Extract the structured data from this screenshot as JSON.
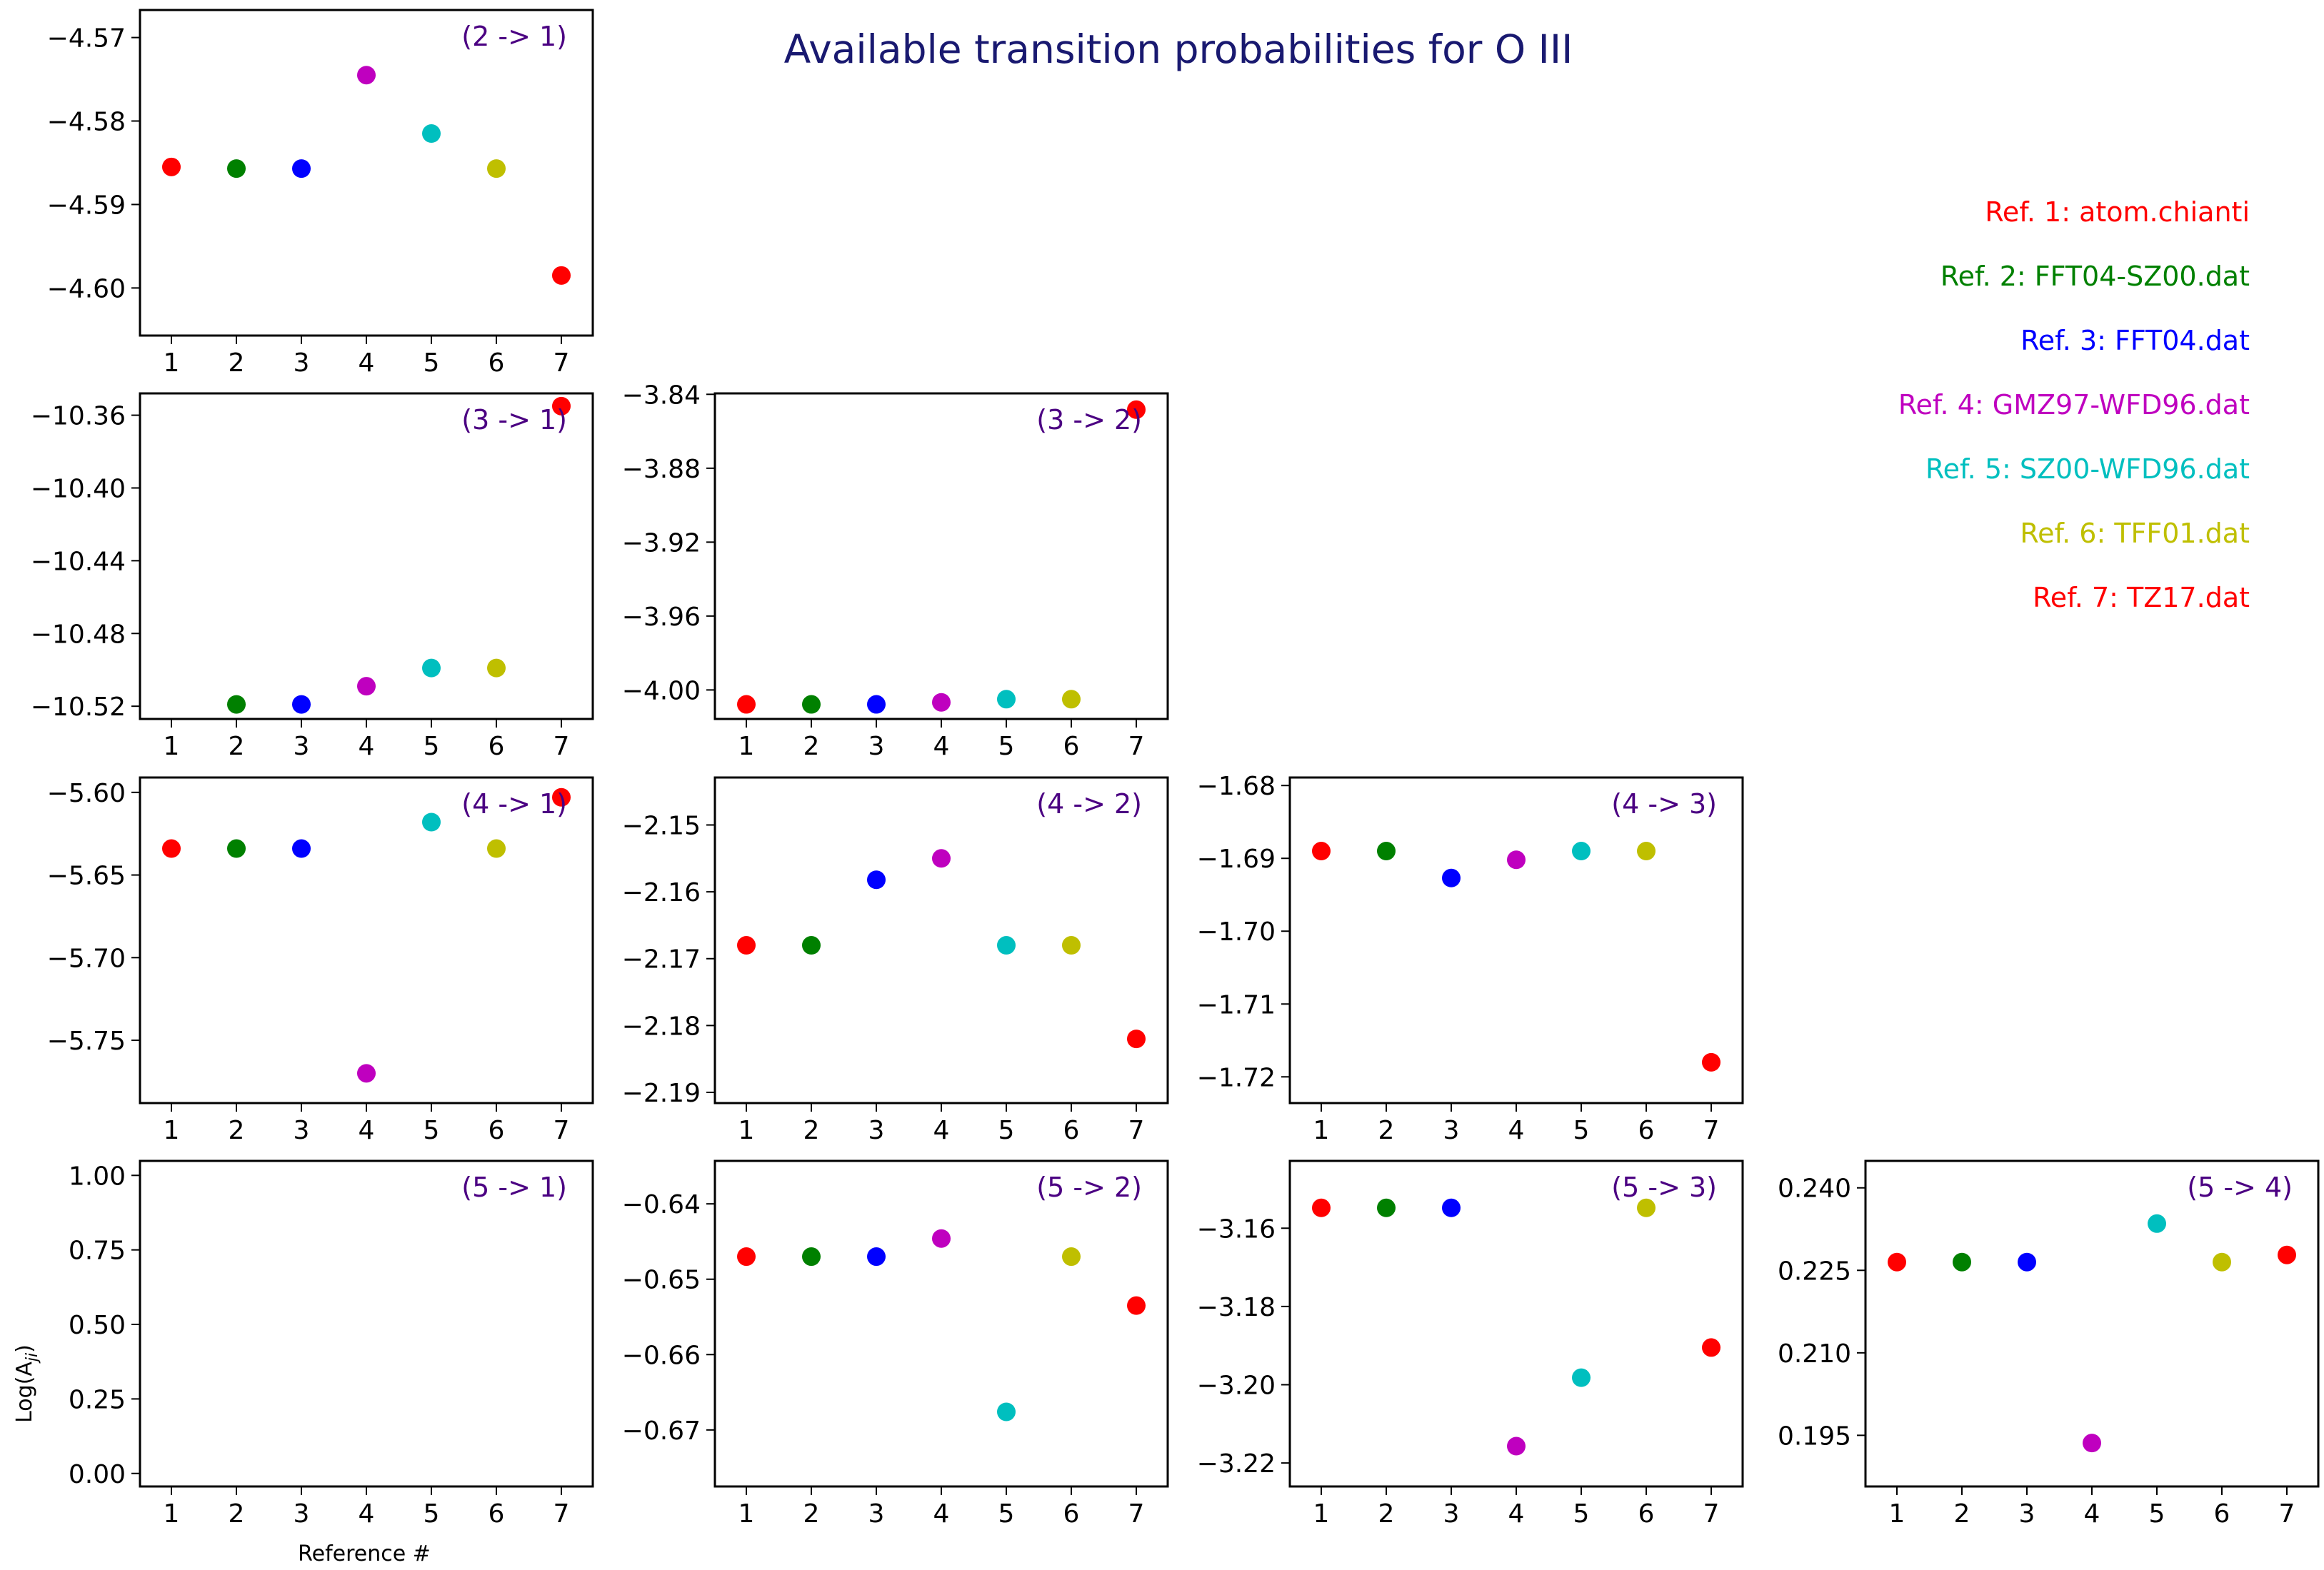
{
  "title": "Available transition probabilities for O III",
  "xlabel": "Reference #",
  "ylabel": "Log(A",
  "ylabel_sub": "ji",
  "ylabel_close": ")",
  "colors": {
    "ref1": "#ff0000",
    "ref2": "#008000",
    "ref3": "#0000ff",
    "ref4": "#bf00bf",
    "ref5": "#00bfbf",
    "ref6": "#bfbf00",
    "ref7": "#ff0000",
    "title": "#191970",
    "panel_label": "#4b0082"
  },
  "legend": [
    {
      "label": "Ref. 1: atom.chianti",
      "color": "#ff0000"
    },
    {
      "label": "Ref. 2: FFT04-SZ00.dat",
      "color": "#008000"
    },
    {
      "label": "Ref. 3: FFT04.dat",
      "color": "#0000ff"
    },
    {
      "label": "Ref. 4: GMZ97-WFD96.dat",
      "color": "#bf00bf"
    },
    {
      "label": "Ref. 5: SZ00-WFD96.dat",
      "color": "#00bfbf"
    },
    {
      "label": "Ref. 6: TFF01.dat",
      "color": "#bfbf00"
    },
    {
      "label": "Ref. 7: TZ17.dat",
      "color": "#ff0000"
    }
  ],
  "chart_data": [
    {
      "type": "scatter",
      "label": "(2 -> 1)",
      "x": [
        1,
        2,
        3,
        4,
        5,
        6,
        7
      ],
      "values": [
        -4.5855,
        -4.5857,
        -4.5857,
        -4.5745,
        -4.5815,
        -4.5857,
        -4.5985
      ],
      "ylim": [
        -4.6057,
        -4.5667
      ],
      "yticks": [
        "-4.57",
        "-4.58",
        "-4.59",
        "-4.60"
      ],
      "ytick_values": [
        -4.57,
        -4.58,
        -4.59,
        -4.6
      ],
      "xticks": [
        "1",
        "2",
        "3",
        "4",
        "5",
        "6",
        "7"
      ]
    },
    {
      "type": "scatter",
      "label": "(3 -> 1)",
      "x": [
        1,
        2,
        3,
        4,
        5,
        6,
        7
      ],
      "values": [
        null,
        -10.519,
        -10.519,
        -10.509,
        -10.499,
        -10.499,
        -10.355
      ],
      "ylim": [
        -10.527,
        -10.348
      ],
      "yticks": [
        "-10.36",
        "-10.40",
        "-10.44",
        "-10.48",
        "-10.52"
      ],
      "ytick_values": [
        -10.36,
        -10.4,
        -10.44,
        -10.48,
        -10.52
      ],
      "xticks": [
        "1",
        "2",
        "3",
        "4",
        "5",
        "6",
        "7"
      ]
    },
    {
      "type": "scatter",
      "label": "(3 -> 2)",
      "x": [
        1,
        2,
        3,
        4,
        5,
        6,
        7
      ],
      "values": [
        -4.0078,
        -4.0078,
        -4.0078,
        -4.0067,
        -4.005,
        -4.005,
        -3.8483
      ],
      "ylim": [
        -4.0157,
        -3.8395
      ],
      "yticks": [
        "-3.84",
        "-3.88",
        "-3.92",
        "-3.96",
        "-4.00"
      ],
      "ytick_values": [
        -3.84,
        -3.88,
        -3.92,
        -3.96,
        -4.0
      ],
      "xticks": [
        "1",
        "2",
        "3",
        "4",
        "5",
        "6",
        "7"
      ]
    },
    {
      "type": "scatter",
      "label": "(4 -> 1)",
      "x": [
        1,
        2,
        3,
        4,
        5,
        6,
        7
      ],
      "values": [
        -5.634,
        -5.634,
        -5.634,
        -5.77,
        -5.618,
        -5.634,
        -5.603
      ],
      "ylim": [
        -5.788,
        -5.591
      ],
      "yticks": [
        "-5.60",
        "-5.65",
        "-5.70",
        "-5.75"
      ],
      "ytick_values": [
        -5.6,
        -5.65,
        -5.7,
        -5.75
      ],
      "xticks": [
        "1",
        "2",
        "3",
        "4",
        "5",
        "6",
        "7"
      ]
    },
    {
      "type": "scatter",
      "label": "(4 -> 2)",
      "x": [
        1,
        2,
        3,
        4,
        5,
        6,
        7
      ],
      "values": [
        -2.168,
        -2.168,
        -2.1582,
        -2.155,
        -2.168,
        -2.168,
        -2.182
      ],
      "ylim": [
        -2.1916,
        -2.1429
      ],
      "yticks": [
        "-2.15",
        "-2.16",
        "-2.17",
        "-2.18",
        "-2.19"
      ],
      "ytick_values": [
        -2.15,
        -2.16,
        -2.17,
        -2.18,
        -2.19
      ],
      "xticks": [
        "1",
        "2",
        "3",
        "4",
        "5",
        "6",
        "7"
      ]
    },
    {
      "type": "scatter",
      "label": "(4 -> 3)",
      "x": [
        1,
        2,
        3,
        4,
        5,
        6,
        7
      ],
      "values": [
        -1.689,
        -1.689,
        -1.6927,
        -1.6902,
        -1.689,
        -1.689,
        -1.718
      ],
      "ylim": [
        -1.7236,
        -1.6789
      ],
      "yticks": [
        "-1.68",
        "-1.69",
        "-1.70",
        "-1.71",
        "-1.72"
      ],
      "ytick_values": [
        -1.68,
        -1.69,
        -1.7,
        -1.71,
        -1.72
      ],
      "xticks": [
        "1",
        "2",
        "3",
        "4",
        "5",
        "6",
        "7"
      ]
    },
    {
      "type": "scatter",
      "label": "(5 -> 1)",
      "x": [],
      "values": [],
      "ylim": [
        -0.0437,
        1.0486
      ],
      "yticks": [
        "1.00",
        "0.75",
        "0.50",
        "0.25",
        "0.00"
      ],
      "ytick_values": [
        1.0,
        0.75,
        0.5,
        0.25,
        0.0
      ],
      "xticks": [
        "1",
        "2",
        "3",
        "4",
        "5",
        "6",
        "7"
      ]
    },
    {
      "type": "scatter",
      "label": "(5 -> 2)",
      "x": [
        1,
        2,
        3,
        4,
        5,
        6,
        7
      ],
      "values": [
        -0.647,
        -0.647,
        -0.647,
        -0.6446,
        -0.6676,
        -0.647,
        -0.6535
      ],
      "ylim": [
        -0.6775,
        -0.6343
      ],
      "yticks": [
        "-0.64",
        "-0.65",
        "-0.66",
        "-0.67"
      ],
      "ytick_values": [
        -0.64,
        -0.65,
        -0.66,
        -0.67
      ],
      "xticks": [
        "1",
        "2",
        "3",
        "4",
        "5",
        "6",
        "7"
      ]
    },
    {
      "type": "scatter",
      "label": "(5 -> 3)",
      "x": [
        1,
        2,
        3,
        4,
        5,
        6,
        7
      ],
      "values": [
        -3.1548,
        -3.1548,
        -3.1548,
        -3.2157,
        -3.1982,
        -3.1548,
        -3.1905
      ],
      "ylim": [
        -3.226,
        -3.1428
      ],
      "yticks": [
        "-3.16",
        "-3.18",
        "-3.20",
        "-3.22"
      ],
      "ytick_values": [
        -3.16,
        -3.18,
        -3.2,
        -3.22
      ],
      "xticks": [
        "1",
        "2",
        "3",
        "4",
        "5",
        "6",
        "7"
      ]
    },
    {
      "type": "scatter",
      "label": "(5 -> 4)",
      "x": [
        1,
        2,
        3,
        4,
        5,
        6,
        7
      ],
      "values": [
        0.2265,
        0.2265,
        0.2265,
        0.1936,
        0.2335,
        0.2265,
        0.2278
      ],
      "ylim": [
        0.1857,
        0.2449
      ],
      "yticks": [
        "0.240",
        "0.225",
        "0.210",
        "0.195"
      ],
      "ytick_values": [
        0.24,
        0.225,
        0.21,
        0.195
      ],
      "xticks": [
        "1",
        "2",
        "3",
        "4",
        "5",
        "6",
        "7"
      ]
    }
  ]
}
